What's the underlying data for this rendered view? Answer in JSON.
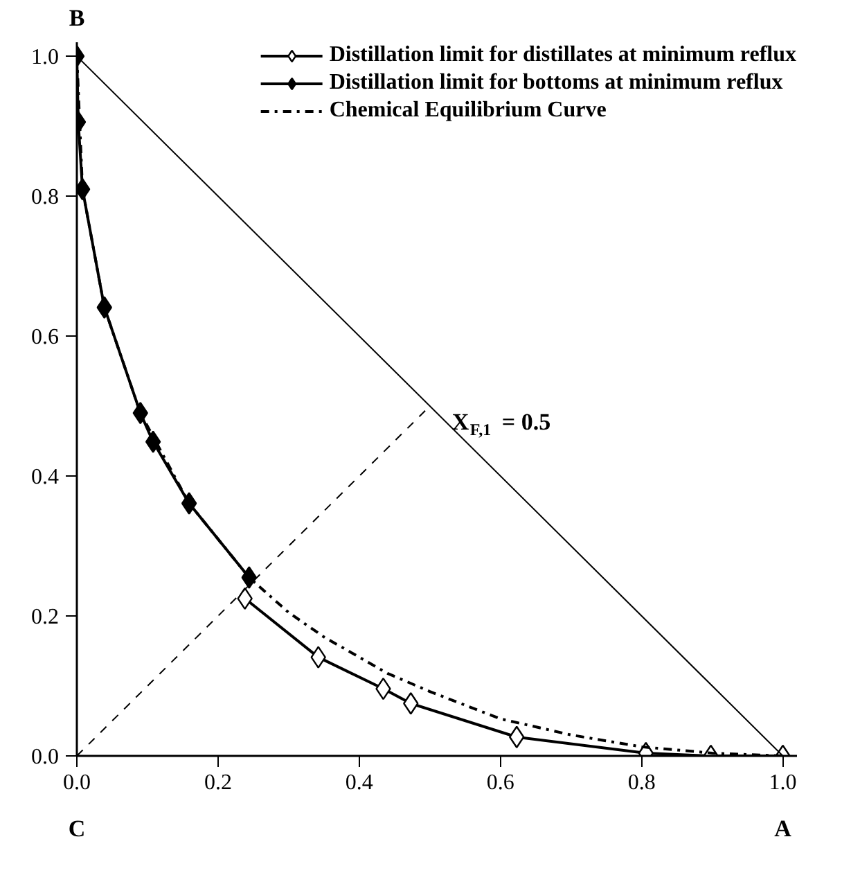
{
  "chart_data": {
    "type": "line",
    "xlim": [
      0,
      1.02
    ],
    "ylim": [
      0,
      1.02
    ],
    "xticks": [
      {
        "value": 0,
        "label": "0.0"
      },
      0.2,
      0.4,
      0.6,
      0.8,
      {
        "value": 1,
        "label": "1.0"
      }
    ],
    "yticks": [
      {
        "value": 0,
        "label": "0.0"
      },
      0.2,
      0.4,
      0.6,
      0.8,
      {
        "value": 1,
        "label": "1.0"
      }
    ],
    "grid": false,
    "legend": "top right",
    "series": [
      {
        "name": "Distillation limit for distillates at minimum reflux",
        "color": "#000000",
        "marker": "diamond_open",
        "line_style": "solid",
        "x": [
          0.238,
          0.342,
          0.434,
          0.473,
          0.623,
          0.806,
          0.898,
          1.0
        ],
        "values": [
          0.225,
          0.141,
          0.096,
          0.075,
          0.027,
          0.004,
          0.0,
          0.0
        ]
      },
      {
        "name": "Distillation limit for bottoms at minimum reflux",
        "color": "#000000",
        "marker": "diamond",
        "line_style": "solid",
        "x": [
          0.0,
          0.002,
          0.008,
          0.039,
          0.09,
          0.108,
          0.159,
          0.244
        ],
        "values": [
          1.0,
          0.906,
          0.81,
          0.641,
          0.49,
          0.449,
          0.361,
          0.255
        ]
      },
      {
        "name": "Chemical Equilibrium Curve",
        "color": "#000000",
        "marker": "none",
        "line_style": "dashdot",
        "x": [
          0.0,
          0.008,
          0.039,
          0.09,
          0.159,
          0.244,
          0.3,
          0.35,
          0.44,
          0.5,
          0.6,
          0.7,
          0.8,
          0.9,
          1.0
        ],
        "values": [
          1.0,
          0.81,
          0.641,
          0.49,
          0.361,
          0.255,
          0.205,
          0.17,
          0.118,
          0.092,
          0.053,
          0.03,
          0.013,
          0.004,
          0.0
        ]
      },
      {
        "color": "#000000",
        "marker": "none",
        "line_style": "solid",
        "x": [
          0.0,
          1.0
        ],
        "values": [
          1.0,
          0.0
        ]
      },
      {
        "color": "#000000",
        "marker": "none",
        "line_style": "dashed",
        "x": [
          0.0,
          0.5
        ],
        "values": [
          0.0,
          0.5
        ]
      }
    ],
    "annotations": [
      {
        "text": "X$_{F,1}$ = 0.5",
        "x": 0.5,
        "y": 0.5
      },
      {
        "text": "B",
        "x": 0.0,
        "y": 1.0
      },
      {
        "text": "C",
        "x": 0.0,
        "y": 0.0
      },
      {
        "text": "A",
        "x": 1.0,
        "y": 0.0
      }
    ]
  }
}
